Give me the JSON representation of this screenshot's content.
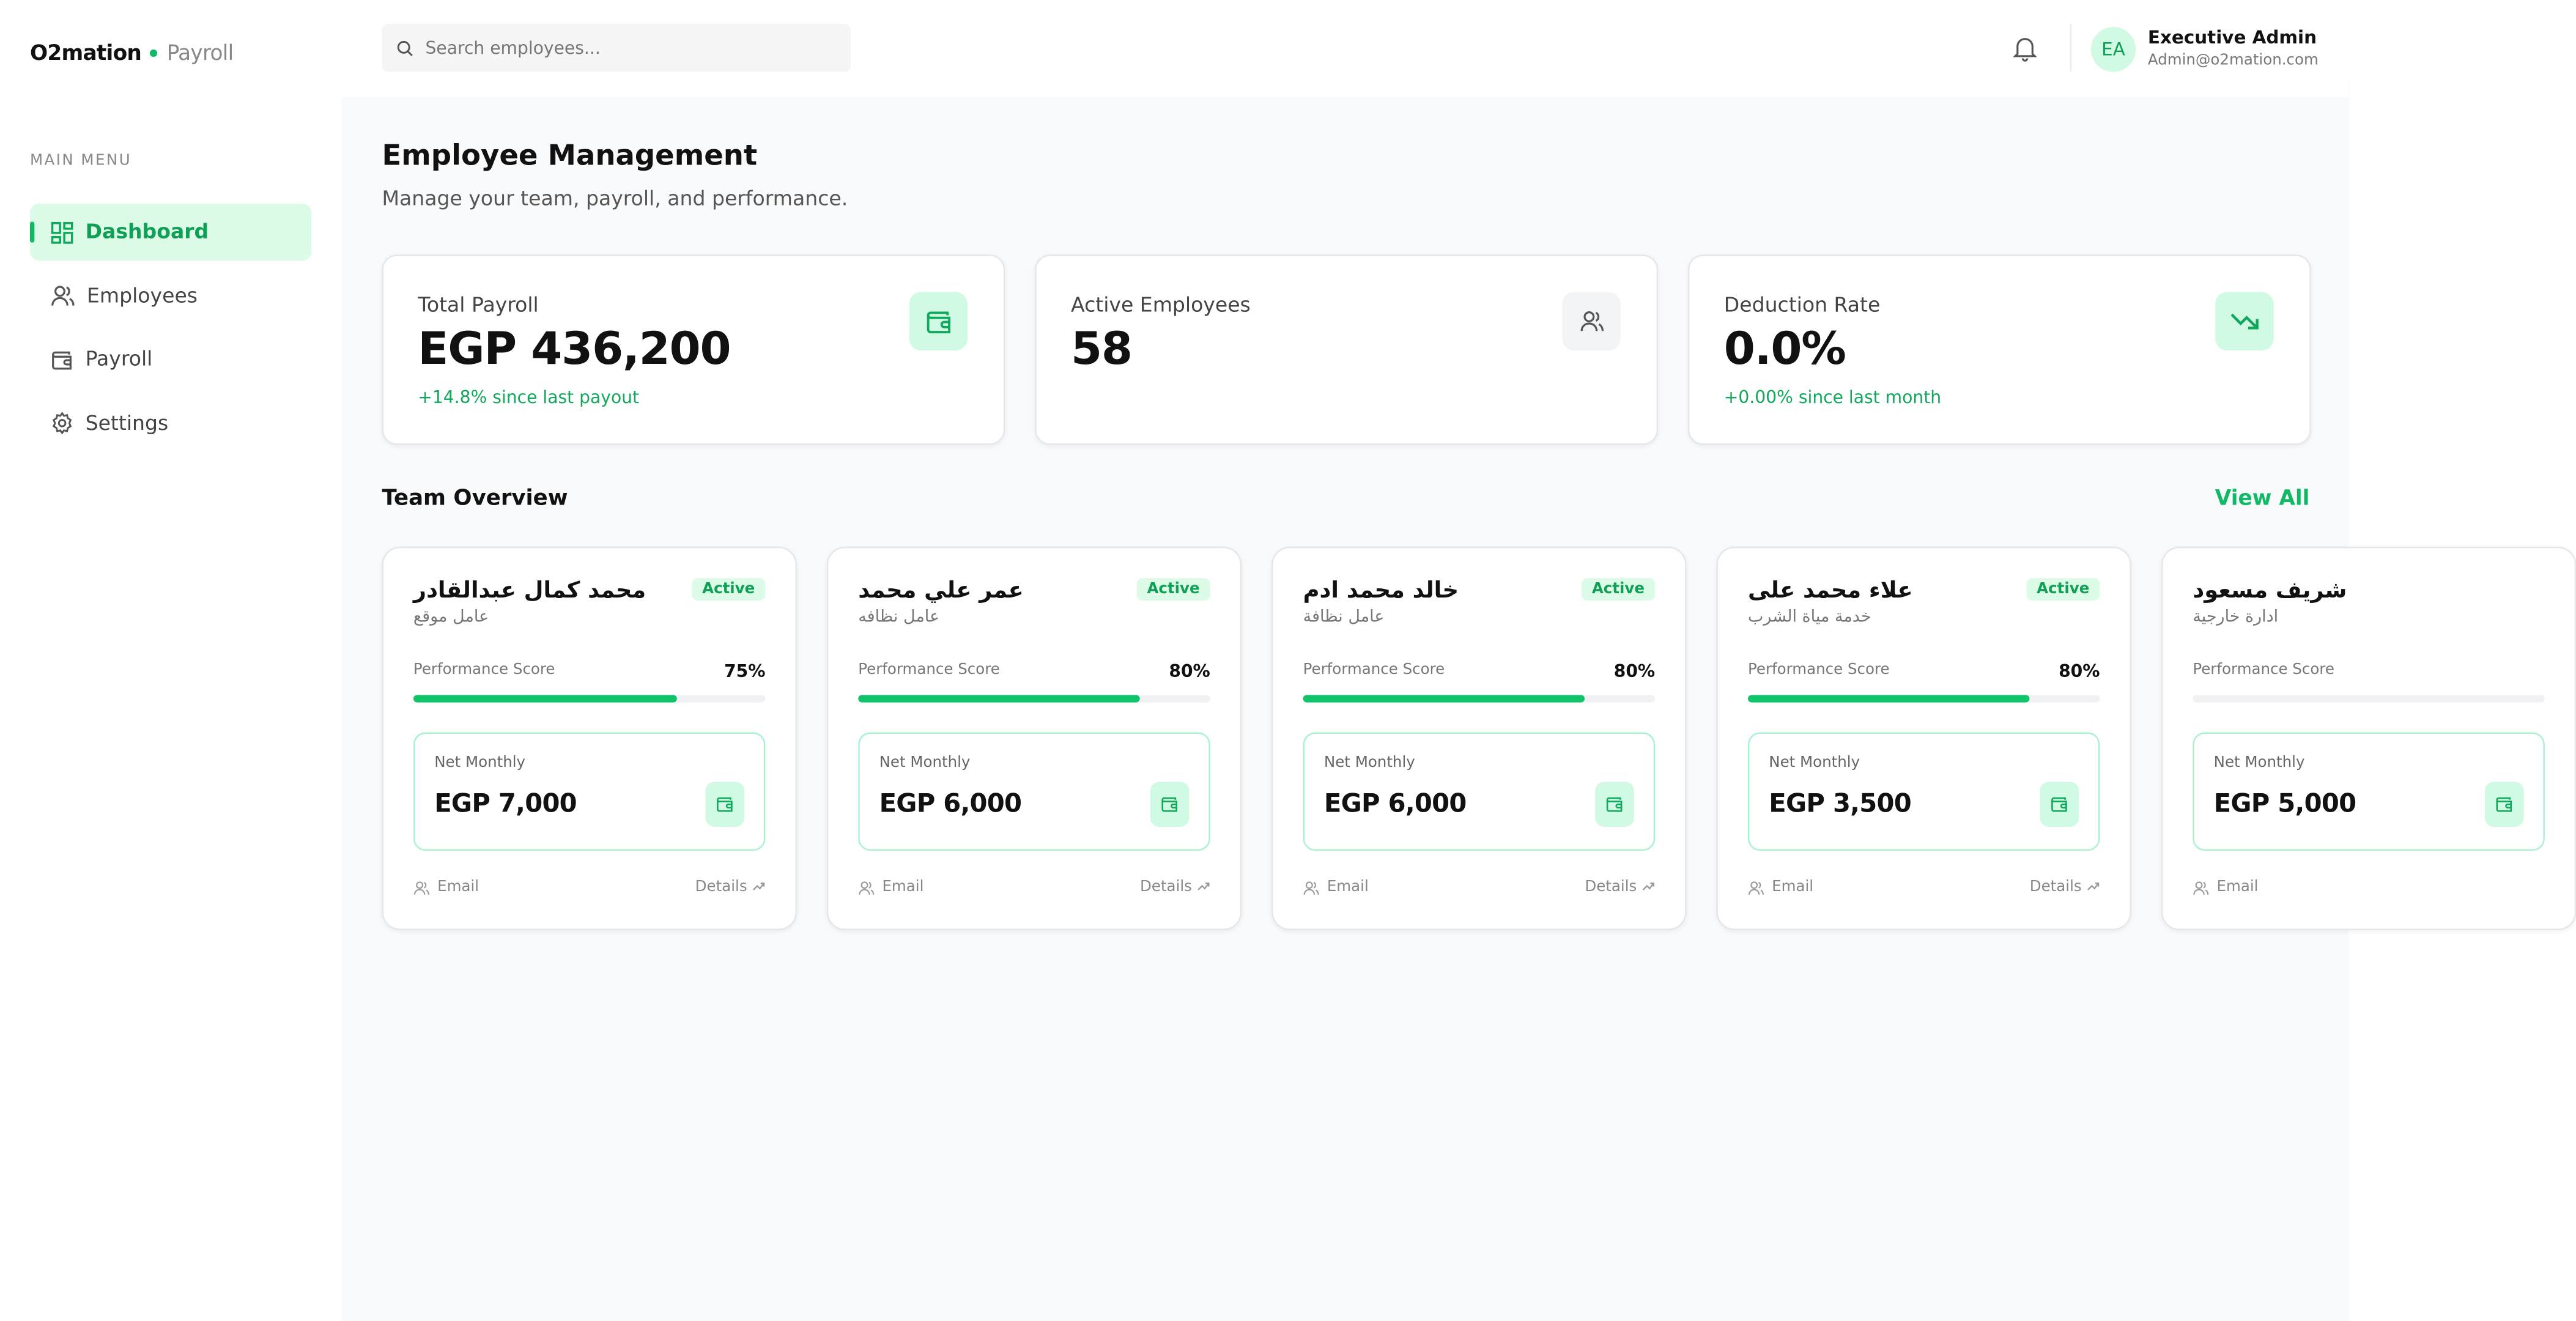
{
  "brand": {
    "name": "O2mation",
    "product": "Payroll"
  },
  "sidebar": {
    "menu_title": "MAIN MENU",
    "items": [
      "Dashboard",
      "Employees",
      "Payroll",
      "Settings"
    ]
  },
  "topbar": {
    "search_placeholder": "Search employees...",
    "avatar": "EA",
    "user_name": "Executive Admin",
    "user_email": "Admin@o2mation.com"
  },
  "header": {
    "title": "Employee Management",
    "subtitle": "Manage your team, payroll, and performance."
  },
  "stats": [
    {
      "label": "Total Payroll",
      "value": "EGP 436,200",
      "delta": "+14.8% since last payout"
    },
    {
      "label": "Active Employees",
      "value": "58"
    },
    {
      "label": "Deduction Rate",
      "value": "0.0%",
      "delta": "+0.00% since last month"
    }
  ],
  "team": {
    "title": "Team Overview",
    "view_all": "View All",
    "cards": [
      {
        "name": "محمد كمال عبدالقادر",
        "role": "عامل موقع",
        "status": "Active",
        "score_label": "Performance Score",
        "score": {
          "value": 75,
          "label": "75%"
        },
        "net_label": "Net Monthly",
        "net": "EGP 7,000",
        "email": "Email",
        "details": "Details"
      },
      {
        "name": "عمر علي محمد",
        "role": "عامل نظافه",
        "status": "Active",
        "score_label": "Performance Score",
        "score": {
          "value": 80,
          "label": "80%"
        },
        "net_label": "Net Monthly",
        "net": "EGP 6,000",
        "email": "Email",
        "details": "Details"
      },
      {
        "name": "خالد محمد ادم",
        "role": "عامل نظافة",
        "status": "Active",
        "score_label": "Performance Score",
        "score": {
          "value": 80,
          "label": "80%"
        },
        "net_label": "Net Monthly",
        "net": "EGP 6,000",
        "email": "Email",
        "details": "Details"
      },
      {
        "name": "علاء محمد على",
        "role": "خدمة مياة الشرب",
        "status": "Active",
        "score_label": "Performance Score",
        "score": {
          "value": 80,
          "label": "80%"
        },
        "net_label": "Net Monthly",
        "net": "EGP 3,500",
        "email": "Email",
        "details": "Details"
      },
      {
        "name": "شريف مسعود",
        "role": "ادارة خارجية",
        "score_label": "Performance Score",
        "net_label": "Net Monthly",
        "net": "EGP 5,000",
        "email": "Email"
      }
    ]
  }
}
